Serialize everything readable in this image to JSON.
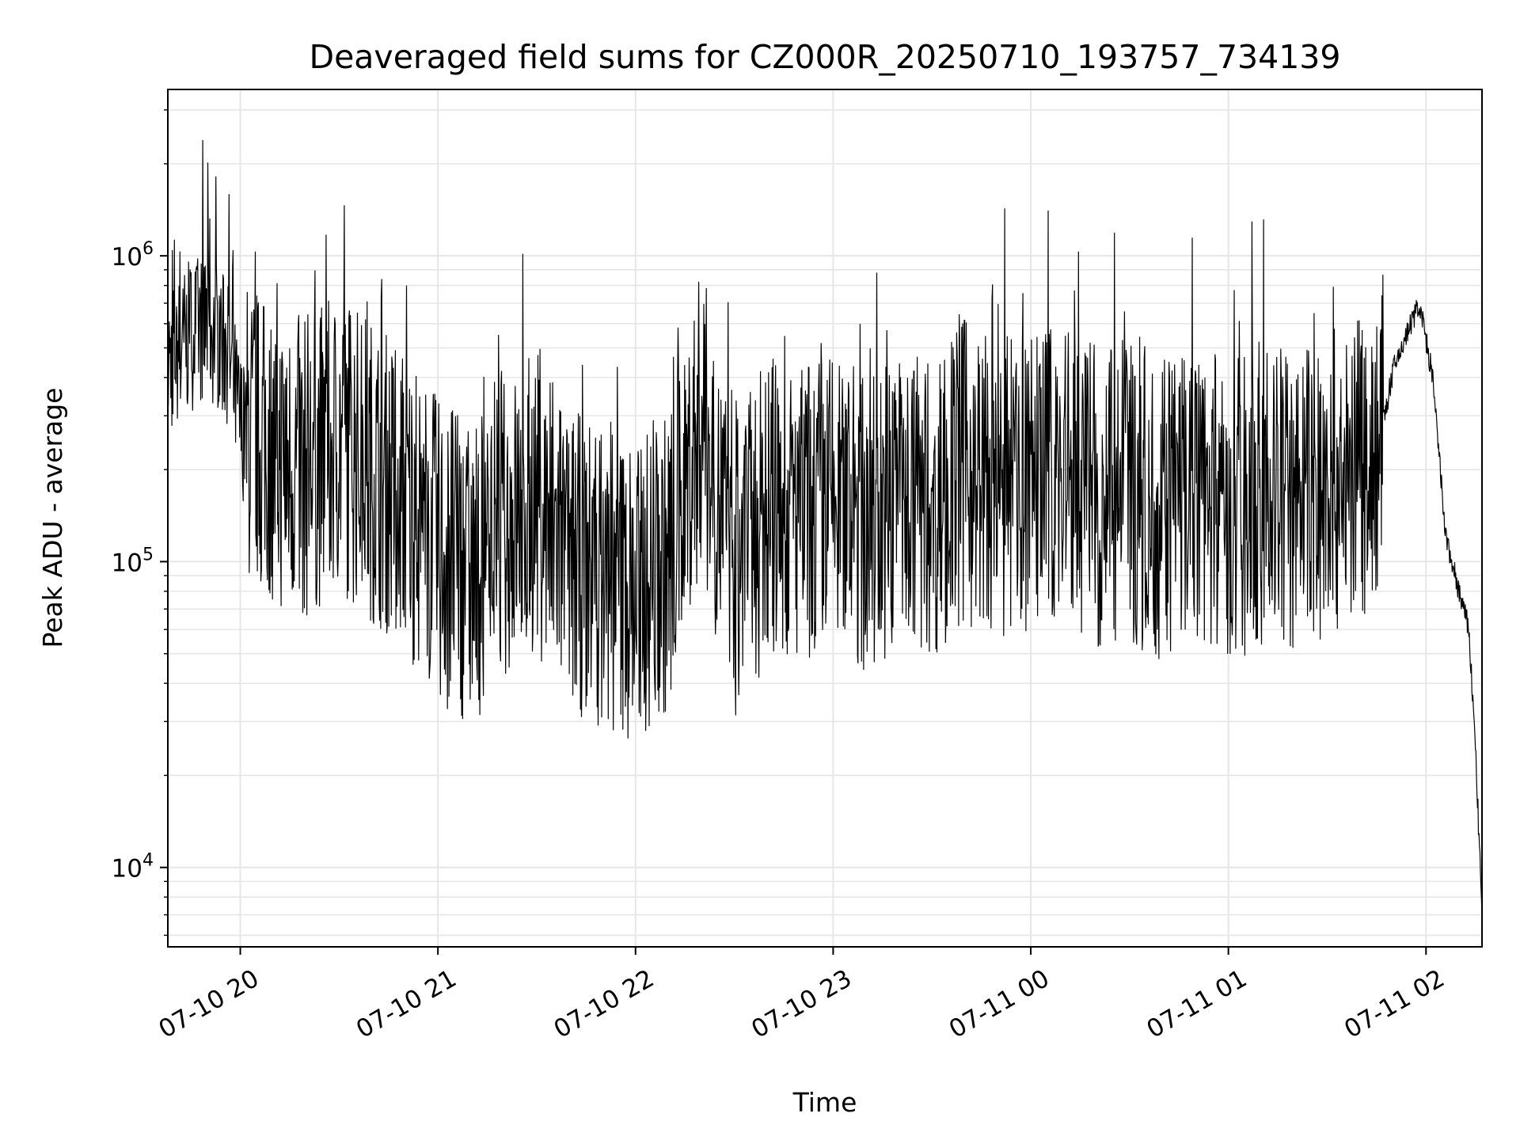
{
  "chart_data": {
    "type": "line",
    "title": "Deaveraged field sums for CZ000R_20250710_193757_734139",
    "xlabel": "Time",
    "ylabel": "Peak ADU - average",
    "y_scale": "log",
    "ylim": [
      5500,
      3500000
    ],
    "xlim": [
      "2025-07-10 19:38",
      "2025-07-11 02:17"
    ],
    "grid": true,
    "line_color": "#000000",
    "grid_color": "#e6e6e6",
    "x_ticks": [
      "2025-07-10 20:00",
      "2025-07-10 21:00",
      "2025-07-10 22:00",
      "2025-07-10 23:00",
      "2025-07-11 00:00",
      "2025-07-11 01:00",
      "2025-07-11 02:00"
    ],
    "x_tick_labels": [
      "07-10 20",
      "07-10 21",
      "07-10 22",
      "07-10 23",
      "07-11 00",
      "07-11 01",
      "07-11 02"
    ],
    "y_ticks": [
      {
        "value": 10000,
        "base": "10",
        "exp": "4"
      },
      {
        "value": 100000,
        "base": "10",
        "exp": "5"
      },
      {
        "value": 1000000,
        "base": "10",
        "exp": "6"
      }
    ],
    "series": [
      {
        "x": [
          "2025-07-10 19:38",
          "2025-07-10 19:45",
          "2025-07-10 19:50",
          "2025-07-10 19:56",
          "2025-07-10 20:00",
          "2025-07-10 20:10",
          "2025-07-10 20:20",
          "2025-07-10 20:30",
          "2025-07-10 20:40",
          "2025-07-10 20:50",
          "2025-07-10 21:00",
          "2025-07-10 21:10",
          "2025-07-10 21:20",
          "2025-07-10 21:30",
          "2025-07-10 21:40",
          "2025-07-10 21:50",
          "2025-07-10 22:00",
          "2025-07-10 22:10",
          "2025-07-10 22:20",
          "2025-07-10 22:30",
          "2025-07-10 22:40",
          "2025-07-10 22:50",
          "2025-07-10 23:00",
          "2025-07-10 23:10",
          "2025-07-10 23:20",
          "2025-07-10 23:30",
          "2025-07-10 23:40",
          "2025-07-10 23:50",
          "2025-07-11 00:00",
          "2025-07-11 00:10",
          "2025-07-11 00:20",
          "2025-07-11 00:30",
          "2025-07-11 00:40",
          "2025-07-11 00:50",
          "2025-07-11 01:00",
          "2025-07-11 01:10",
          "2025-07-11 01:20",
          "2025-07-11 01:30",
          "2025-07-11 01:40",
          "2025-07-11 01:46",
          "2025-07-11 01:50",
          "2025-07-11 01:54",
          "2025-07-11 01:58",
          "2025-07-11 02:02",
          "2025-07-11 02:06",
          "2025-07-11 02:10",
          "2025-07-11 02:13",
          "2025-07-11 02:15",
          "2025-07-11 02:17"
        ],
        "y": [
          450000,
          550000,
          600000,
          500000,
          280000,
          220000,
          200000,
          250000,
          200000,
          160000,
          110000,
          90000,
          130000,
          160000,
          100000,
          90000,
          80000,
          100000,
          300000,
          90000,
          150000,
          140000,
          160000,
          130000,
          170000,
          150000,
          200000,
          170000,
          180000,
          200000,
          160000,
          170000,
          150000,
          180000,
          140000,
          170000,
          160000,
          180000,
          200000,
          250000,
          420000,
          550000,
          700000,
          400000,
          120000,
          80000,
          60000,
          25000,
          7000
        ]
      }
    ]
  }
}
